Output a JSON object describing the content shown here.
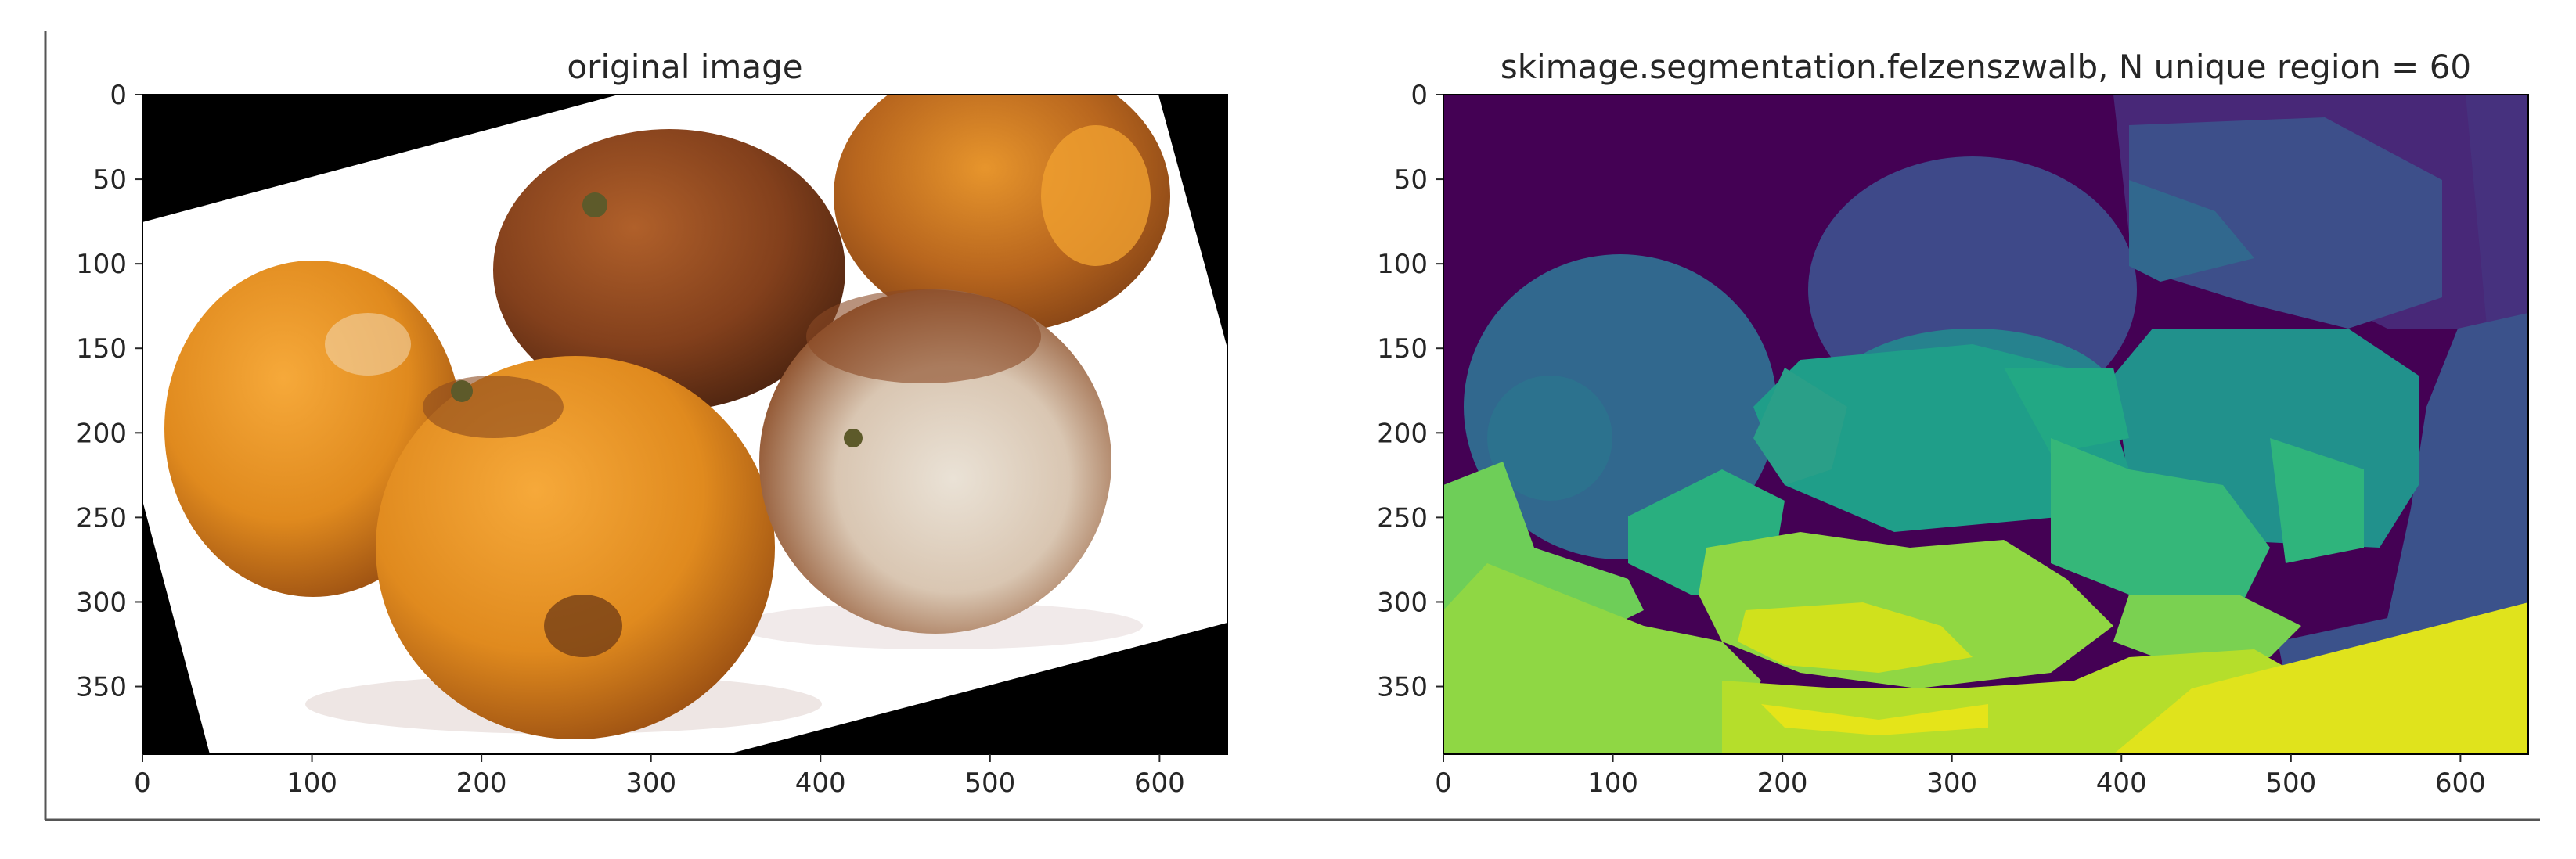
{
  "chart_data": [
    {
      "type": "image",
      "title": "original image",
      "xlabel": "",
      "ylabel": "",
      "xlim": [
        0,
        640
      ],
      "ylim": [
        390,
        0
      ],
      "xticks": [
        "0",
        "100",
        "200",
        "300",
        "400",
        "500",
        "600"
      ],
      "yticks": [
        "0",
        "50",
        "100",
        "150",
        "200",
        "250",
        "300",
        "350"
      ],
      "grid": false,
      "content": "photograph of five moldy oranges on a white background, rotated, with black corners"
    },
    {
      "type": "heatmap",
      "title": "skimage.segmentation.felzenszwalb, N unique region = 60",
      "xlabel": "",
      "ylabel": "",
      "xlim": [
        0,
        640
      ],
      "ylim": [
        390,
        0
      ],
      "xticks": [
        "0",
        "100",
        "200",
        "300",
        "400",
        "500",
        "600"
      ],
      "yticks": [
        "0",
        "50",
        "100",
        "150",
        "200",
        "250",
        "300",
        "350"
      ],
      "grid": false,
      "colormap": "viridis",
      "n_regions": 60
    }
  ],
  "colors": {
    "frame_line": "#555555",
    "text": "#262626",
    "viridis": [
      "#440154",
      "#482878",
      "#3e4989",
      "#31688e",
      "#26828e",
      "#1f9e89",
      "#35b779",
      "#6ece58",
      "#b5de2b",
      "#fde725"
    ]
  }
}
